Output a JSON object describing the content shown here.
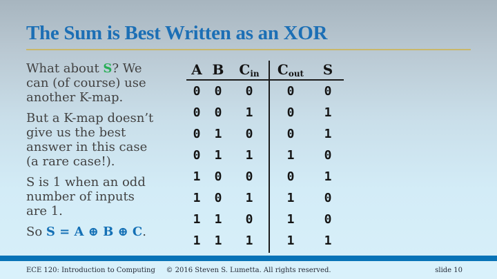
{
  "title": "The Sum is Best Written as an XOR",
  "paragraphs": {
    "p1": {
      "before": "What about ",
      "highlight": "S",
      "after": "?  We\ncan (of course) use\nanother K-map."
    },
    "p2": "But a K-map doesn’t\ngive us the best\nanswer in this case\n(a rare case!).",
    "p3": "S is 1 when an odd\nnumber of inputs\nare 1.",
    "p4": {
      "before": "So ",
      "formula": "S = A ⊕ B ⊕ C",
      "after": "."
    }
  },
  "table": {
    "headers": [
      {
        "label": "A",
        "sub": ""
      },
      {
        "label": "B",
        "sub": ""
      },
      {
        "label": "C",
        "sub": "in"
      },
      {
        "label": "C",
        "sub": "out"
      },
      {
        "label": "S",
        "sub": ""
      }
    ],
    "rows": [
      [
        "0",
        "0",
        "0",
        "0",
        "0"
      ],
      [
        "0",
        "0",
        "1",
        "0",
        "1"
      ],
      [
        "0",
        "1",
        "0",
        "0",
        "1"
      ],
      [
        "0",
        "1",
        "1",
        "1",
        "0"
      ],
      [
        "1",
        "0",
        "0",
        "0",
        "1"
      ],
      [
        "1",
        "0",
        "1",
        "1",
        "0"
      ],
      [
        "1",
        "1",
        "0",
        "1",
        "0"
      ],
      [
        "1",
        "1",
        "1",
        "1",
        "1"
      ]
    ]
  },
  "footer": {
    "left": "ECE 120: Introduction to Computing",
    "center": "© 2016 Steven S. Lumetta.  All rights reserved.",
    "right": "slide 10"
  },
  "colors": {
    "title_blue": "#1c6fb5",
    "formula_blue": "#1470b5",
    "highlight_green": "#27ae55",
    "title_rule_gold": "#c9b86a",
    "footer_bar_blue": "#0873b7",
    "footer_bg": "#d9f1fb",
    "body_text": "#424242",
    "table_text": "#141414"
  }
}
